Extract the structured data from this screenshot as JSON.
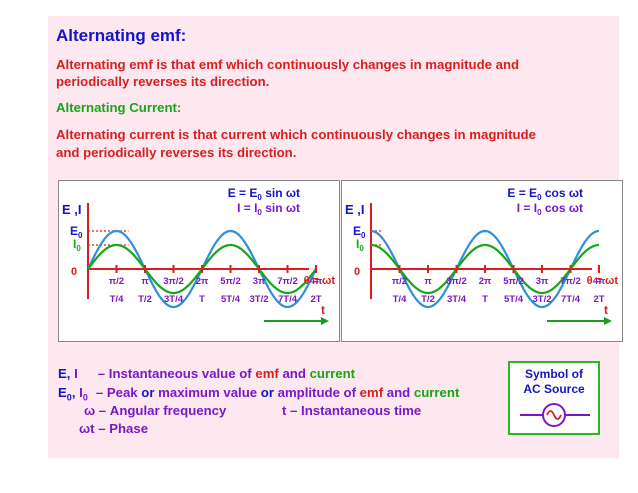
{
  "title": "Alternating emf:",
  "emf_def_1": "Alternating emf is that emf  which continuously changes in magnitude and",
  "emf_def_2": "periodically reverses its direction.",
  "current_heading": "Alternating Current:",
  "current_def_1": "Alternating current is that current  which continuously changes in magnitude",
  "current_def_2": "and periodically reverses its direction.",
  "colors": {
    "title": "#1414c8",
    "red": "#d81e1e",
    "green": "#16a616",
    "blue_wave": "#2f8fd8",
    "purple": "#7a18c8",
    "axis": "#d81e1e"
  },
  "graphs": [
    {
      "eq_emf_a": "E  = E",
      "eq_emf_sub": "0",
      "eq_emf_b": " sin ωt",
      "eq_cur_a": "I  = I",
      "eq_cur_sub": "0",
      "eq_cur_b": " sin ωt",
      "ylabel": "E ,I",
      "E0": "E",
      "I0": "I",
      "sub0": "0",
      "origin": "0",
      "theta_label": "θ = ωt",
      "t_label": "t",
      "angle_ticks": [
        "π/2",
        "π",
        "3π/2",
        "2π",
        "5π/2",
        "3π",
        "7π/2",
        "4π"
      ],
      "time_ticks": [
        "T/4",
        "T/2",
        "3T/4",
        "T",
        "5T/4",
        "3T/2",
        "7T/4",
        "2T"
      ],
      "function": "sin"
    },
    {
      "eq_emf_a": "E  = E",
      "eq_emf_sub": "0",
      "eq_emf_b": " cos ωt",
      "eq_cur_a": "I  = I",
      "eq_cur_sub": "0",
      "eq_cur_b": " cos ωt",
      "ylabel": "E ,I",
      "E0": "E",
      "I0": "I",
      "sub0": "0",
      "origin": "0",
      "theta_label": "θ = ωt",
      "t_label": "t",
      "angle_ticks": [
        "π/2",
        "π",
        "3π/2",
        "2π",
        "5π/2",
        "3π",
        "7π/2",
        "4π"
      ],
      "time_ticks": [
        "T/4",
        "T/2",
        "3T/4",
        "T",
        "5T/4",
        "3T/2",
        "7T/4",
        "2T"
      ],
      "function": "cos"
    }
  ],
  "legend": {
    "l1_a": "E",
    "l1_b": ", ",
    "l1_c": "I",
    "l1_d": "– Instantaneous value of ",
    "l1_e": "emf",
    "l1_f": " and ",
    "l1_g": "current",
    "l2_a": "E",
    "l2_a_sub": "0",
    "l2_b": ", ",
    "l2_c": "I",
    "l2_c_sub": "0",
    "l2_d": "– Peak ",
    "l2_e": "or",
    "l2_f": " maximum value ",
    "l2_g": "or",
    "l2_h": " amplitude of ",
    "l2_i": "emf",
    "l2_j": " and ",
    "l2_k": "current",
    "l3_a": "ω – Angular frequency",
    "l3_b": "t – Instantaneous time",
    "l4": "ωt – Phase"
  },
  "symbol": {
    "line1": "Symbol of",
    "line2": "AC Source",
    "glyph": "∿"
  }
}
